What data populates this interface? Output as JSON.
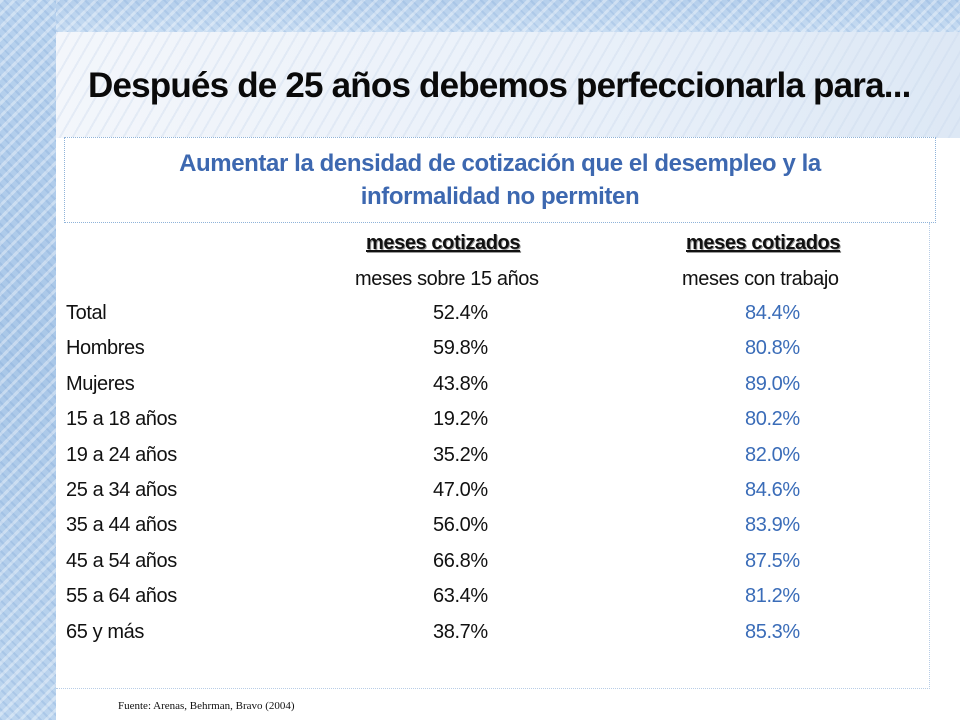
{
  "title": "Después de 25 años debemos perfeccionarla para...",
  "subtitle_line1": "Aumentar la densidad de cotización que el desempleo y la",
  "subtitle_line2": "informalidad no permiten",
  "table": {
    "col1_header_top": "meses cotizados",
    "col1_header_bottom": "meses sobre 15 años",
    "col2_header_top": "meses cotizados",
    "col2_header_bottom": "meses con trabajo",
    "rows": [
      {
        "label": "Total",
        "v1": "52.4%",
        "v2": "84.4%"
      },
      {
        "label": "Hombres",
        "v1": "59.8%",
        "v2": "80.8%"
      },
      {
        "label": "Mujeres",
        "v1": "43.8%",
        "v2": "89.0%"
      },
      {
        "label": "15 a 18 años",
        "v1": "19.2%",
        "v2": "80.2%"
      },
      {
        "label": "19 a 24 años",
        "v1": "35.2%",
        "v2": "82.0%"
      },
      {
        "label": "25 a 34 años",
        "v1": "47.0%",
        "v2": "84.6%"
      },
      {
        "label": "35 a 44 años",
        "v1": "56.0%",
        "v2": "83.9%"
      },
      {
        "label": "45 a 54 años",
        "v1": "66.8%",
        "v2": "87.5%"
      },
      {
        "label": "55 a 64 años",
        "v1": "63.4%",
        "v2": "81.2%"
      },
      {
        "label": "65 y más",
        "v1": "38.7%",
        "v2": "85.3%"
      }
    ]
  },
  "source": "Fuente: Arenas, Behrman, Bravo (2004)",
  "colors": {
    "accent_blue": "#3d68b0",
    "value_blue": "#3a6cb8"
  }
}
